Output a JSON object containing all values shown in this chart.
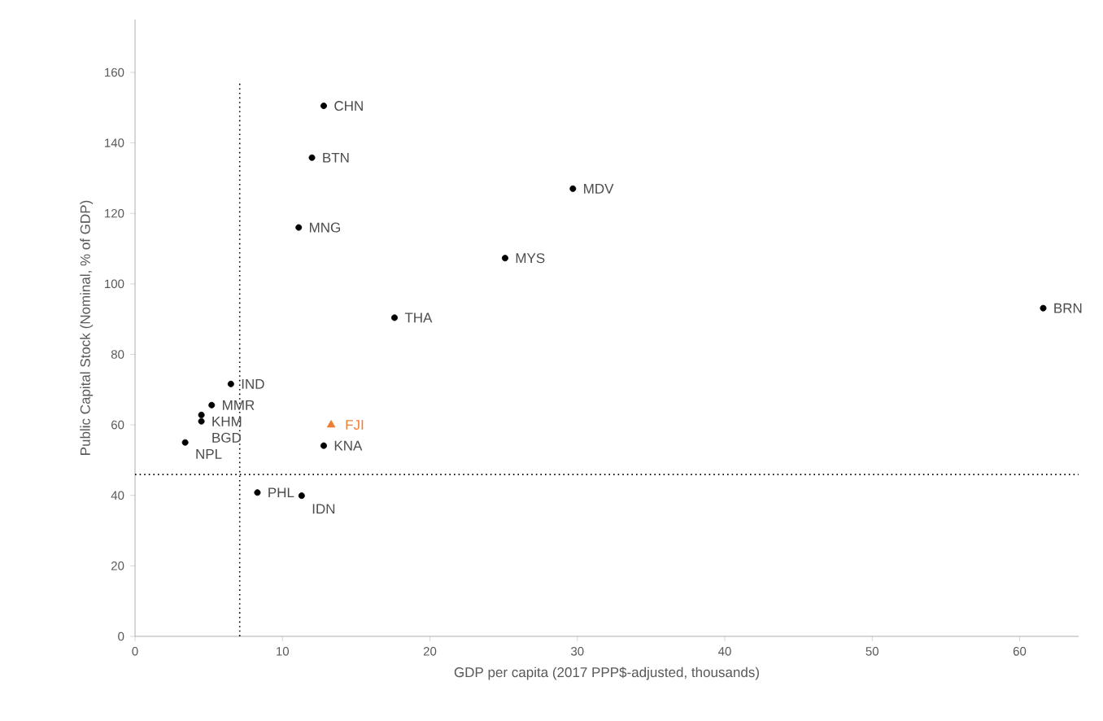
{
  "chart_data": {
    "type": "scatter",
    "xlabel": "GDP per capita (2017 PPP$-adjusted, thousands)",
    "ylabel": "Public Capital Stock (Nominal, % of GDP)",
    "xlim": [
      0,
      64
    ],
    "ylim": [
      0,
      175
    ],
    "xticks": [
      0,
      10,
      20,
      30,
      40,
      50,
      60
    ],
    "yticks": [
      0,
      20,
      40,
      60,
      80,
      100,
      120,
      140,
      160
    ],
    "grid": false,
    "marker": "circle",
    "series": [
      {
        "color": "#000000",
        "x": [
          12.8,
          12.0,
          29.7,
          11.1,
          25.1,
          17.6,
          61.6,
          6.5,
          5.2,
          4.5,
          4.5,
          3.4,
          12.8,
          8.3,
          11.3
        ],
        "values": [
          150.5,
          135.8,
          127,
          116,
          107.3,
          90.4,
          93.1,
          71.6,
          65.6,
          62.8,
          61,
          55,
          54.1,
          40.8,
          39.9
        ]
      },
      {
        "name": "FJI",
        "color": "#ed7d31",
        "marker": "triangle",
        "x": [
          13.3
        ],
        "values": [
          60
        ]
      }
    ],
    "annotations": [
      {
        "text": "CHN",
        "x": 12.8,
        "y": 150.5
      },
      {
        "text": "BTN",
        "x": 12.0,
        "y": 135.8
      },
      {
        "text": "MDV",
        "x": 29.7,
        "y": 127
      },
      {
        "text": "MNG",
        "x": 11.1,
        "y": 116
      },
      {
        "text": "MYS",
        "x": 25.1,
        "y": 107.3
      },
      {
        "text": "THA",
        "x": 17.6,
        "y": 90.4
      },
      {
        "text": "BRN",
        "x": 61.6,
        "y": 93.1
      },
      {
        "text": "IND",
        "x": 6.5,
        "y": 71.6
      },
      {
        "text": "MMR",
        "x": 5.2,
        "y": 65.6
      },
      {
        "text": "KHM",
        "x": 4.5,
        "y": 62.8
      },
      {
        "text": "BGD",
        "x": 4.5,
        "y": 61
      },
      {
        "text": "NPL",
        "x": 3.4,
        "y": 55
      },
      {
        "text": "KNA",
        "x": 12.8,
        "y": 54.1
      },
      {
        "text": "PHL",
        "x": 8.3,
        "y": 40.8
      },
      {
        "text": "IDN",
        "x": 11.3,
        "y": 39.9
      }
    ],
    "ref_lines": [
      {
        "axis": "x",
        "value": 7.1,
        "line_style": "dotted",
        "color": "#000000"
      },
      {
        "axis": "y",
        "value": 45.9,
        "line_style": "dotted",
        "color": "#000000"
      }
    ]
  }
}
